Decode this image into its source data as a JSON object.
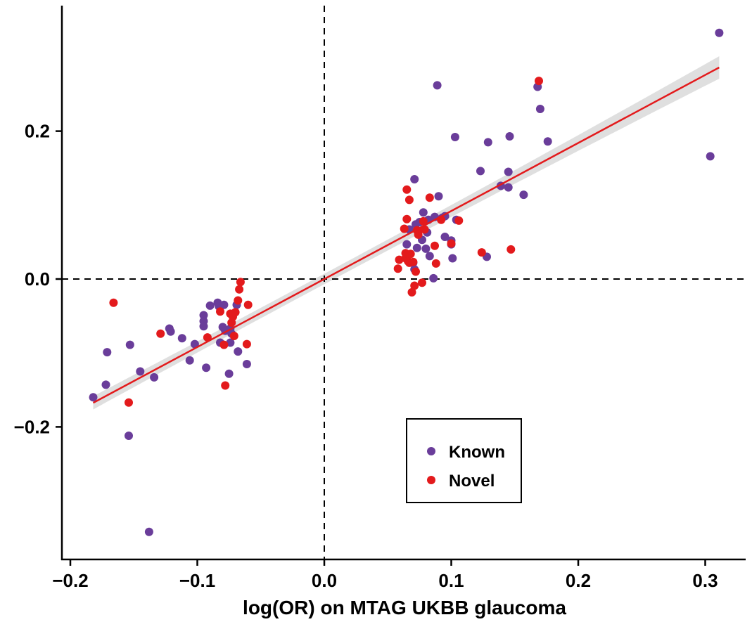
{
  "chart_data": {
    "type": "scatter",
    "title": "",
    "xlabel": "log(OR) on MTAG UKBB glaucoma",
    "ylabel": "",
    "xlim": [
      -0.205,
      0.335
    ],
    "ylim": [
      -0.37,
      0.37
    ],
    "x_ticks": [
      -0.2,
      -0.1,
      0.0,
      0.1,
      0.2,
      0.3
    ],
    "x_tick_labels": [
      "−0.2",
      "−0.1",
      "0.0",
      "0.1",
      "0.2",
      "0.3"
    ],
    "y_ticks": [
      -0.2,
      0.0,
      0.2
    ],
    "y_tick_labels": [
      "−0.2",
      "0.0",
      "0.2"
    ],
    "reference_lines": {
      "x": 0,
      "y": 0,
      "style": "dashed"
    },
    "fit_line": {
      "slope": 0.92,
      "intercept": 0.0,
      "x_range": [
        -0.182,
        0.311
      ],
      "color": "#e31a1c",
      "ci_band": true,
      "ci_band_color": "#d9d9d9"
    },
    "legend_position": "bottom-right",
    "grid": false,
    "series": [
      {
        "name": "Known",
        "color": "#6a3d9a",
        "points": [
          [
            -0.182,
            -0.16
          ],
          [
            -0.172,
            -0.143
          ],
          [
            -0.171,
            -0.099
          ],
          [
            -0.154,
            -0.212
          ],
          [
            -0.153,
            -0.089
          ],
          [
            -0.145,
            -0.125
          ],
          [
            -0.138,
            -0.342
          ],
          [
            -0.134,
            -0.133
          ],
          [
            -0.122,
            -0.067
          ],
          [
            -0.121,
            -0.071
          ],
          [
            -0.112,
            -0.08
          ],
          [
            -0.106,
            -0.11
          ],
          [
            -0.102,
            -0.088
          ],
          [
            -0.095,
            -0.049
          ],
          [
            -0.095,
            -0.057
          ],
          [
            -0.095,
            -0.064
          ],
          [
            -0.093,
            -0.12
          ],
          [
            -0.09,
            -0.036
          ],
          [
            -0.084,
            -0.032
          ],
          [
            -0.083,
            -0.037
          ],
          [
            -0.082,
            -0.086
          ],
          [
            -0.08,
            -0.065
          ],
          [
            -0.079,
            -0.035
          ],
          [
            -0.078,
            -0.07
          ],
          [
            -0.075,
            -0.128
          ],
          [
            -0.074,
            -0.067
          ],
          [
            -0.074,
            -0.086
          ],
          [
            -0.073,
            -0.074
          ],
          [
            -0.069,
            -0.035
          ],
          [
            -0.068,
            -0.098
          ],
          [
            -0.061,
            -0.115
          ],
          [
            0.065,
            0.047
          ],
          [
            0.067,
            0.067
          ],
          [
            0.07,
            0.022
          ],
          [
            0.071,
            0.013
          ],
          [
            0.071,
            0.135
          ],
          [
            0.072,
            0.074
          ],
          [
            0.073,
            0.042
          ],
          [
            0.075,
            0.077
          ],
          [
            0.077,
            0.053
          ],
          [
            0.078,
            0.09
          ],
          [
            0.08,
            0.041
          ],
          [
            0.081,
            0.063
          ],
          [
            0.082,
            0.08
          ],
          [
            0.083,
            0.031
          ],
          [
            0.086,
            0.001
          ],
          [
            0.087,
            0.084
          ],
          [
            0.089,
            0.262
          ],
          [
            0.09,
            0.112
          ],
          [
            0.093,
            0.083
          ],
          [
            0.095,
            0.057
          ],
          [
            0.095,
            0.085
          ],
          [
            0.1,
            0.052
          ],
          [
            0.1,
            0.047
          ],
          [
            0.101,
            0.028
          ],
          [
            0.103,
            0.192
          ],
          [
            0.104,
            0.08
          ],
          [
            0.123,
            0.146
          ],
          [
            0.128,
            0.03
          ],
          [
            0.129,
            0.185
          ],
          [
            0.139,
            0.126
          ],
          [
            0.145,
            0.145
          ],
          [
            0.145,
            0.124
          ],
          [
            0.146,
            0.193
          ],
          [
            0.157,
            0.114
          ],
          [
            0.168,
            0.26
          ],
          [
            0.17,
            0.23
          ],
          [
            0.176,
            0.186
          ],
          [
            0.304,
            0.166
          ],
          [
            0.311,
            0.333
          ]
        ]
      },
      {
        "name": "Novel",
        "color": "#e31a1c",
        "points": [
          [
            -0.166,
            -0.032
          ],
          [
            -0.154,
            -0.167
          ],
          [
            -0.129,
            -0.074
          ],
          [
            -0.092,
            -0.079
          ],
          [
            -0.082,
            -0.044
          ],
          [
            -0.079,
            -0.089
          ],
          [
            -0.078,
            -0.144
          ],
          [
            -0.074,
            -0.047
          ],
          [
            -0.073,
            -0.059
          ],
          [
            -0.072,
            -0.051
          ],
          [
            -0.071,
            -0.077
          ],
          [
            -0.07,
            -0.045
          ],
          [
            -0.068,
            -0.029
          ],
          [
            -0.067,
            -0.014
          ],
          [
            -0.066,
            -0.004
          ],
          [
            -0.061,
            -0.088
          ],
          [
            -0.06,
            -0.035
          ],
          [
            0.058,
            0.014
          ],
          [
            0.059,
            0.026
          ],
          [
            0.063,
            0.068
          ],
          [
            0.064,
            0.028
          ],
          [
            0.064,
            0.035
          ],
          [
            0.065,
            0.121
          ],
          [
            0.065,
            0.081
          ],
          [
            0.066,
            0.024
          ],
          [
            0.067,
            0.022
          ],
          [
            0.067,
            0.107
          ],
          [
            0.068,
            0.034
          ],
          [
            0.069,
            -0.018
          ],
          [
            0.07,
            0.023
          ],
          [
            0.071,
            -0.009
          ],
          [
            0.072,
            0.01
          ],
          [
            0.073,
            0.066
          ],
          [
            0.074,
            0.06
          ],
          [
            0.077,
            -0.005
          ],
          [
            0.078,
            0.078
          ],
          [
            0.079,
            0.067
          ],
          [
            0.083,
            0.11
          ],
          [
            0.087,
            0.045
          ],
          [
            0.088,
            0.021
          ],
          [
            0.092,
            0.08
          ],
          [
            0.1,
            0.048
          ],
          [
            0.106,
            0.079
          ],
          [
            0.124,
            0.036
          ],
          [
            0.147,
            0.04
          ],
          [
            0.169,
            0.268
          ]
        ]
      }
    ]
  }
}
